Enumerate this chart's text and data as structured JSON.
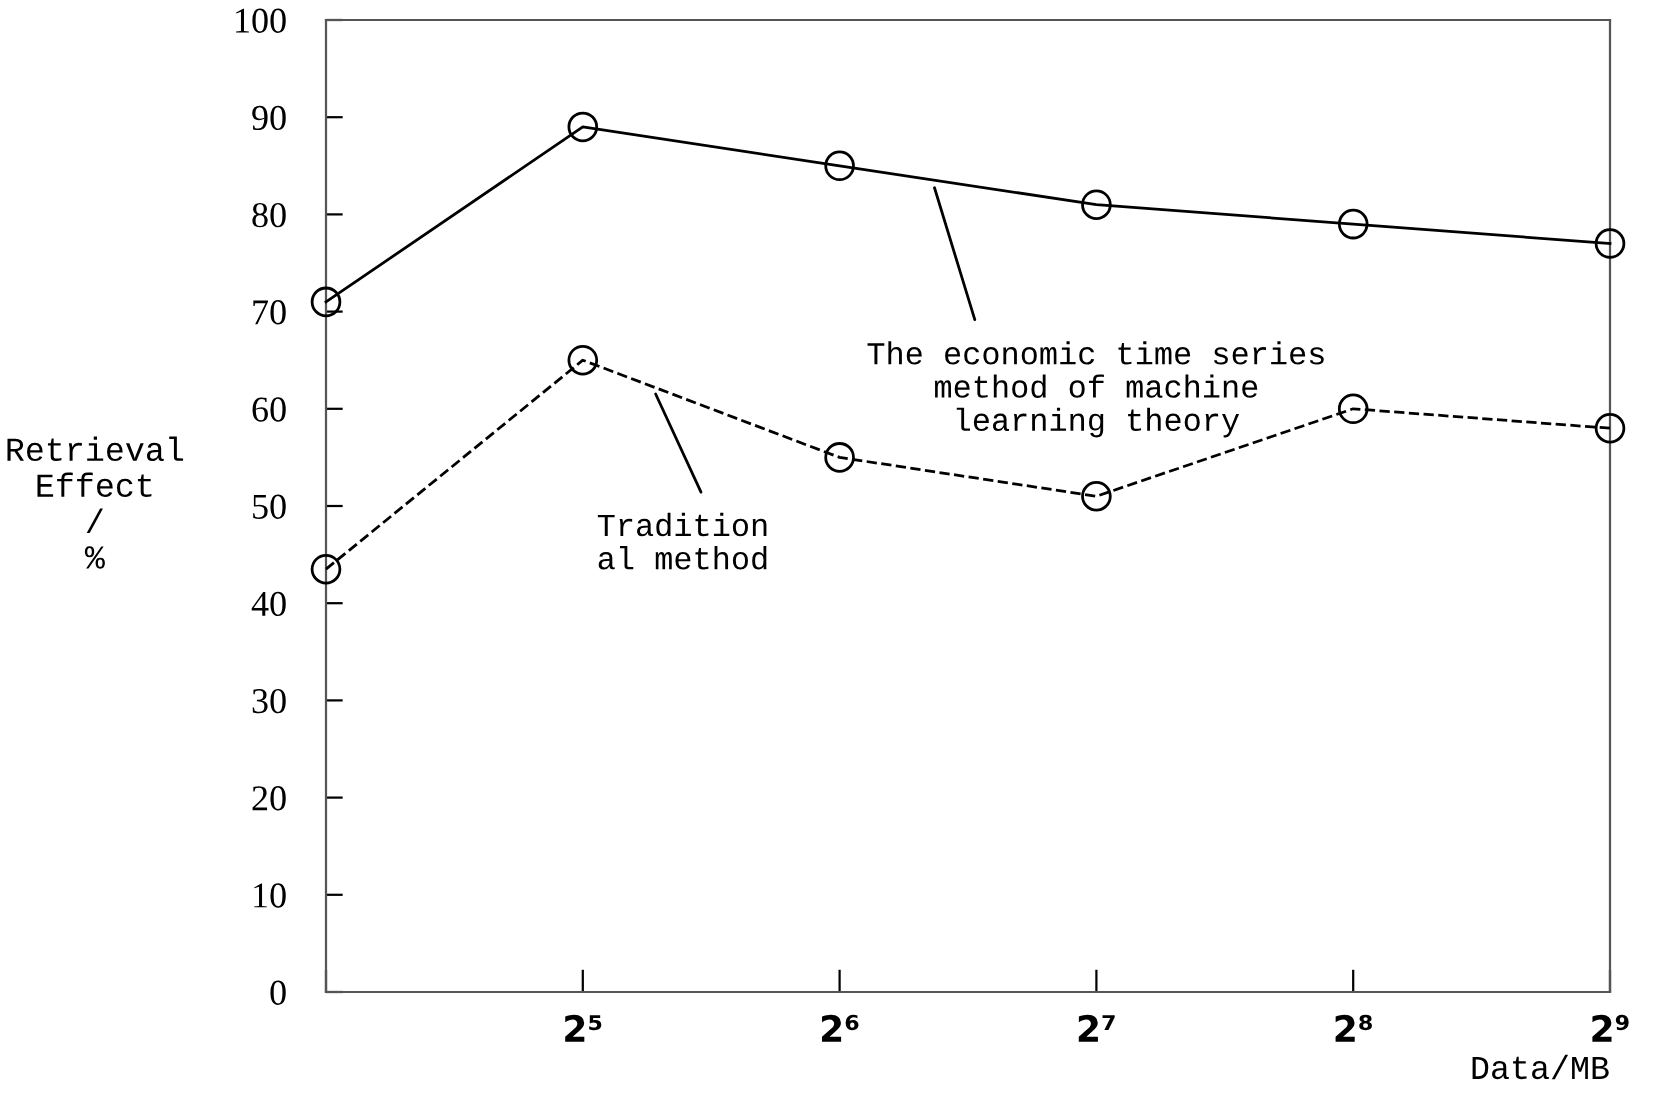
{
  "chart_data": {
    "type": "line",
    "xlabel": "Data/MB",
    "ylabel": "Retrieval\nEffect\n/\n%",
    "categories": [
      null,
      "2⁵",
      "2⁶",
      "2⁷",
      "2⁸",
      "2⁹"
    ],
    "series": [
      {
        "name": "The economic time series\nmethod of machine\nlearning theory",
        "color": "#000000",
        "line_style": "solid",
        "values": [
          71,
          89,
          85,
          81,
          79,
          77
        ]
      },
      {
        "name": "Tradition\nal method",
        "color": "#000000",
        "line_style": "dashed",
        "values": [
          43.5,
          65,
          55,
          51,
          60,
          58
        ]
      }
    ],
    "ylim": [
      0,
      100
    ],
    "yticks": [
      0,
      10,
      20,
      30,
      40,
      50,
      60,
      70,
      80,
      90,
      100
    ],
    "marker": "circle",
    "grid": false,
    "legend": false
  }
}
